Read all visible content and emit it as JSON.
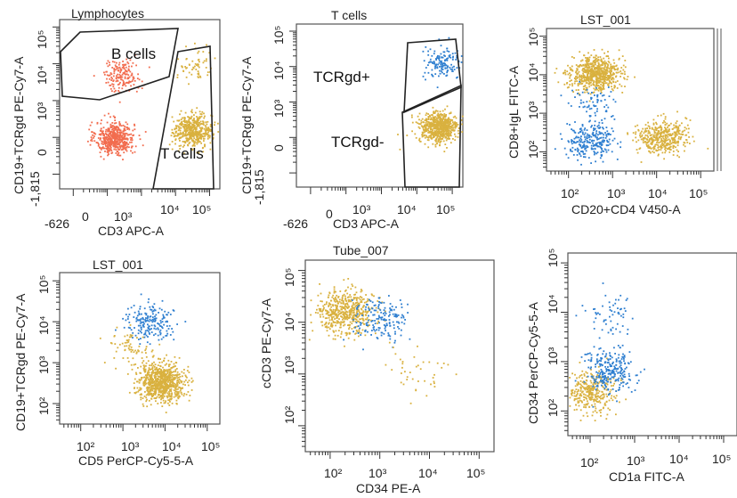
{
  "chart_data": [
    {
      "type": "scatter",
      "title": "Lymphocytes",
      "xlabel": "CD3 APC-A",
      "ylabel": "CD19+TCRgd PE-Cy7-A",
      "x_tick_labels": [
        "-626",
        "0",
        "10³",
        "10⁴",
        "10⁵"
      ],
      "y_tick_labels": [
        "-1,815",
        "0",
        "10³",
        "10⁴",
        "10⁵"
      ],
      "gates": [
        "B cells",
        "T cells"
      ],
      "populations": [
        {
          "color": "#f26d4f",
          "x_center_log10": 2.2,
          "y_center_log10": 2.0,
          "count": 520
        },
        {
          "color": "#f26d4f",
          "x_center_log10": 2.4,
          "y_center_log10": 3.7,
          "count": 170
        },
        {
          "color": "#d9b13f",
          "x_center_log10": 4.5,
          "y_center_log10": 2.2,
          "count": 480
        },
        {
          "color": "#d9b13f",
          "x_center_log10": 4.6,
          "y_center_log10": 4.0,
          "count": 60
        }
      ]
    },
    {
      "type": "scatter",
      "title": "T cells",
      "xlabel": "CD3 APC-A",
      "ylabel": "CD19+TCRgd PE-Cy7-A",
      "x_tick_labels": [
        "-626",
        "0",
        "10³",
        "10⁴",
        "10⁵"
      ],
      "y_tick_labels": [
        "-1,815",
        "0",
        "10³",
        "10⁴",
        "10⁵"
      ],
      "gates": [
        "TCRgd+",
        "TCRgd-"
      ],
      "populations": [
        {
          "color": "#2f7fd0",
          "x_center_log10": 4.7,
          "y_center_log10": 4.1,
          "count": 140
        },
        {
          "color": "#d9b13f",
          "x_center_log10": 4.6,
          "y_center_log10": 2.3,
          "count": 620
        }
      ]
    },
    {
      "type": "scatter",
      "title": "LST_001",
      "xlabel": "CD20+CD4 V450-A",
      "ylabel": "CD8+IgL FITC-A",
      "x_tick_labels": [
        "10²",
        "10³",
        "10⁴",
        "10⁵"
      ],
      "y_tick_labels": [
        "10²",
        "10³",
        "10⁴",
        "10⁵"
      ],
      "populations": [
        {
          "color": "#d9b13f",
          "x_center_log10": 2.6,
          "y_center_log10": 4.05,
          "count": 700
        },
        {
          "color": "#d9b13f",
          "x_center_log10": 4.1,
          "y_center_log10": 2.4,
          "count": 420
        },
        {
          "color": "#2f7fd0",
          "x_center_log10": 2.5,
          "y_center_log10": 2.3,
          "count": 260
        },
        {
          "color": "#2f7fd0",
          "x_center_log10": 2.6,
          "y_center_log10": 3.3,
          "count": 70
        }
      ]
    },
    {
      "type": "scatter",
      "title": "LST_001",
      "xlabel": "CD5 PerCP-Cy5-5-A",
      "ylabel": "CD19+TCRgd PE-Cy7-A",
      "x_tick_labels": [
        "10²",
        "10³",
        "10⁴",
        "10⁵"
      ],
      "y_tick_labels": [
        "10²",
        "10³",
        "10⁴",
        "10⁵"
      ],
      "populations": [
        {
          "color": "#d9b13f",
          "x_center_log10": 3.9,
          "y_center_log10": 2.55,
          "count": 800
        },
        {
          "color": "#2f7fd0",
          "x_center_log10": 3.6,
          "y_center_log10": 4.0,
          "count": 190
        },
        {
          "color": "#d9b13f",
          "x_center_log10": 3.2,
          "y_center_log10": 3.4,
          "count": 70
        }
      ]
    },
    {
      "type": "scatter",
      "title": "Tube_007",
      "xlabel": "CD34 PE-A",
      "ylabel": "cCD3 PE-Cy7-A",
      "x_tick_labels": [
        "10²",
        "10³",
        "10⁴",
        "10⁵"
      ],
      "y_tick_labels": [
        "10²",
        "10³",
        "10⁴",
        "10⁵"
      ],
      "populations": [
        {
          "color": "#d9b13f",
          "x_center_log10": 2.3,
          "y_center_log10": 4.2,
          "count": 520
        },
        {
          "color": "#2f7fd0",
          "x_center_log10": 3.0,
          "y_center_log10": 4.05,
          "count": 170
        },
        {
          "color": "#d9b13f",
          "x_center_log10": 3.7,
          "y_center_log10": 3.1,
          "count": 40
        }
      ]
    },
    {
      "type": "scatter",
      "title": "",
      "xlabel": "CD1a FITC-A",
      "ylabel": "CD34 PerCP-Cy5-5-A",
      "x_tick_labels": [
        "10²",
        "10³",
        "10⁴",
        "10⁵"
      ],
      "y_tick_labels": [
        "10²",
        "10³",
        "10⁴",
        "10⁵"
      ],
      "populations": [
        {
          "color": "#d9b13f",
          "x_center_log10": 2.0,
          "y_center_log10": 2.4,
          "count": 330
        },
        {
          "color": "#2f7fd0",
          "x_center_log10": 2.4,
          "y_center_log10": 2.8,
          "count": 260
        },
        {
          "color": "#2f7fd0",
          "x_center_log10": 2.4,
          "y_center_log10": 3.9,
          "count": 60
        }
      ]
    }
  ]
}
